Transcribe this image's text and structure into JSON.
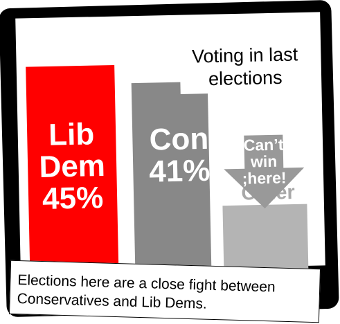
{
  "chart_data": {
    "type": "bar",
    "title": "Voting in last elections",
    "categories": [
      "Lib Dem",
      "Con",
      "Other"
    ],
    "values": [
      45,
      41,
      14
    ],
    "value_labels": [
      "45%",
      "41%",
      ""
    ],
    "colors": [
      "#ff0000",
      "#888888",
      "#b4b4b4"
    ],
    "ylim": [
      0,
      50
    ],
    "grid": false,
    "xlabel": "",
    "ylabel": "",
    "annotation": {
      "text": "Can't win ;here!",
      "lines": [
        "Can’t",
        "win",
        ";here!"
      ],
      "icon": "down-arrow-icon",
      "color": "#999999"
    }
  },
  "caption": "Elections here are a close fight between Conservatives and Lib Dems."
}
